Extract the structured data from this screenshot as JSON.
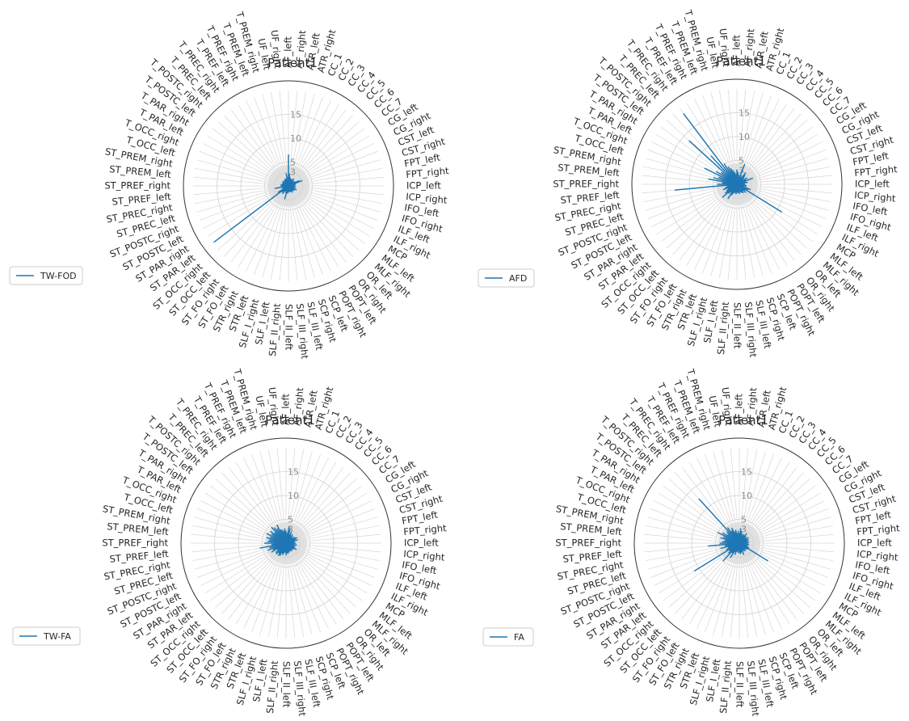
{
  "chart_data": [
    {
      "type": "radar",
      "title": "Patient1",
      "legend": "TW-FOD",
      "legend_position": "left",
      "color": "#1f77b4",
      "grid": true,
      "rlim": [
        0,
        20
      ],
      "rticks": [
        3,
        5,
        10,
        15
      ],
      "categories": [
        "AF_left",
        "AF_right",
        "ATR_left",
        "ATR_right",
        "CC_1",
        "CC_2",
        "CC_3",
        "CC_4",
        "CC_5",
        "CC_6",
        "CC_7",
        "CG_left",
        "CG_right",
        "CST_left",
        "CST_right",
        "FPT_left",
        "FPT_right",
        "ICP_left",
        "ICP_right",
        "IFO_left",
        "IFO_right",
        "ILF_left",
        "ILF_right",
        "MCP",
        "MLF_left",
        "MLF_right",
        "OR_left",
        "OR_right",
        "POPT_left",
        "POPT_right",
        "SCP_left",
        "SCP_right",
        "SLF_III_left",
        "SLF_III_right",
        "SLF_II_left",
        "SLF_II_right",
        "SLF_I_left",
        "SLF_I_right",
        "STR_left",
        "STR_right",
        "ST_FO_left",
        "ST_FO_right",
        "ST_OCC_left",
        "ST_OCC_right",
        "ST_PAR_left",
        "ST_PAR_right",
        "ST_POSTC_left",
        "ST_POSTC_right",
        "ST_PREC_left",
        "ST_PREC_right",
        "ST_PREF_left",
        "ST_PREF_right",
        "ST_PREM_left",
        "ST_PREM_right",
        "T_OCC_left",
        "T_OCC_right",
        "T_PAR_left",
        "T_PAR_right",
        "T_POSTC_left",
        "T_POSTC_right",
        "T_PREC_left",
        "T_PREC_right",
        "T_PREF_left",
        "T_PREF_right",
        "T_PREM_left",
        "T_PREM_right",
        "UF_left",
        "UF_right"
      ],
      "values": [
        6.5,
        2.5,
        1.8,
        1.5,
        1.2,
        1.5,
        1.0,
        1.8,
        1.2,
        1.4,
        1.0,
        1.6,
        2.4,
        3.0,
        1.5,
        1.2,
        1.4,
        1.0,
        1.2,
        1.5,
        1.0,
        1.2,
        1.8,
        1.5,
        1.0,
        1.4,
        1.2,
        1.0,
        1.5,
        1.2,
        1.0,
        1.3,
        1.1,
        1.0,
        1.2,
        1.5,
        1.0,
        2.8,
        1.5,
        1.0,
        1.2,
        2.0,
        1.6,
        1.8,
        19.5,
        2.5,
        1.4,
        1.2,
        1.0,
        2.8,
        1.5,
        1.2,
        1.6,
        1.0,
        1.4,
        1.2,
        1.0,
        1.3,
        1.5,
        1.2,
        1.0,
        1.4,
        1.2,
        1.6,
        1.3,
        1.5,
        2.6,
        1.8
      ]
    },
    {
      "type": "radar",
      "title": "Patient1",
      "legend": "AFD",
      "legend_position": "left",
      "color": "#1f77b4",
      "grid": true,
      "rlim": [
        0,
        20
      ],
      "rticks": [
        3,
        5,
        10,
        15
      ],
      "categories": [
        "AF_left",
        "AF_right",
        "ATR_left",
        "ATR_right",
        "CC_1",
        "CC_2",
        "CC_3",
        "CC_4",
        "CC_5",
        "CC_6",
        "CC_7",
        "CG_left",
        "CG_right",
        "CST_left",
        "CST_right",
        "FPT_left",
        "FPT_right",
        "ICP_left",
        "ICP_right",
        "IFO_left",
        "IFO_right",
        "ILF_left",
        "ILF_right",
        "MCP",
        "MLF_left",
        "MLF_right",
        "OR_left",
        "OR_right",
        "POPT_left",
        "POPT_right",
        "SCP_left",
        "SCP_right",
        "SLF_III_left",
        "SLF_III_right",
        "SLF_II_left",
        "SLF_II_right",
        "SLF_I_left",
        "SLF_I_right",
        "STR_left",
        "STR_right",
        "ST_FO_left",
        "ST_FO_right",
        "ST_OCC_left",
        "ST_OCC_right",
        "ST_PAR_left",
        "ST_PAR_right",
        "ST_POSTC_left",
        "ST_POSTC_right",
        "ST_PREC_left",
        "ST_PREC_right",
        "ST_PREF_left",
        "ST_PREF_right",
        "ST_PREM_left",
        "ST_PREM_right",
        "T_OCC_left",
        "T_OCC_right",
        "T_PAR_left",
        "T_PAR_right",
        "T_POSTC_left",
        "T_POSTC_right",
        "T_PREC_left",
        "T_PREC_right",
        "T_PREF_left",
        "T_PREF_right",
        "T_PREM_left",
        "T_PREM_right",
        "UF_left",
        "UF_right"
      ],
      "values": [
        3.0,
        2.5,
        2.0,
        1.5,
        4.5,
        2.0,
        1.5,
        3.0,
        2.5,
        2.0,
        1.5,
        2.5,
        2.0,
        3.5,
        1.8,
        2.2,
        1.6,
        1.4,
        1.8,
        2.0,
        1.5,
        3.0,
        2.5,
        11.0,
        2.0,
        2.5,
        1.8,
        2.2,
        2.0,
        1.8,
        1.5,
        2.0,
        1.6,
        1.8,
        1.5,
        2.0,
        1.8,
        1.6,
        2.0,
        2.5,
        3.5,
        2.0,
        2.5,
        4.0,
        3.0,
        2.5,
        2.0,
        3.0,
        2.5,
        2.0,
        13.0,
        4.0,
        3.0,
        6.0,
        5.0,
        4.0,
        7.5,
        5.0,
        4.0,
        13.5,
        8.0,
        18.5,
        5.0,
        4.0,
        3.5,
        3.0,
        2.5,
        2.0
      ]
    },
    {
      "type": "radar",
      "title": "Patient1",
      "legend": "TW-FA",
      "legend_position": "left",
      "color": "#1f77b4",
      "grid": true,
      "rlim": [
        0,
        20
      ],
      "rticks": [
        3,
        5,
        10,
        15
      ],
      "categories": [
        "AF_left",
        "AF_right",
        "ATR_left",
        "ATR_right",
        "CC_1",
        "CC_2",
        "CC_3",
        "CC_4",
        "CC_5",
        "CC_6",
        "CC_7",
        "CG_left",
        "CG_right",
        "CST_left",
        "CST_right",
        "FPT_left",
        "FPT_right",
        "ICP_left",
        "ICP_right",
        "IFO_left",
        "IFO_right",
        "ILF_left",
        "ILF_right",
        "MCP",
        "MLF_left",
        "MLF_right",
        "OR_left",
        "OR_right",
        "POPT_left",
        "POPT_right",
        "SCP_left",
        "SCP_right",
        "SLF_III_left",
        "SLF_III_right",
        "SLF_II_left",
        "SLF_II_right",
        "SLF_I_left",
        "SLF_I_right",
        "STR_left",
        "STR_right",
        "ST_FO_left",
        "ST_FO_right",
        "ST_OCC_left",
        "ST_OCC_right",
        "ST_PAR_left",
        "ST_PAR_right",
        "ST_POSTC_left",
        "ST_POSTC_right",
        "ST_PREC_left",
        "ST_PREC_right",
        "ST_PREF_left",
        "ST_PREF_right",
        "ST_PREM_left",
        "ST_PREM_right",
        "T_OCC_left",
        "T_OCC_right",
        "T_PAR_left",
        "T_PAR_right",
        "T_POSTC_left",
        "T_POSTC_right",
        "T_PREC_left",
        "T_PREC_right",
        "T_PREF_left",
        "T_PREF_right",
        "T_PREM_left",
        "T_PREM_right",
        "UF_left",
        "UF_right"
      ],
      "values": [
        2.5,
        2.0,
        3.5,
        3.0,
        2.0,
        2.5,
        1.8,
        2.2,
        1.5,
        2.0,
        1.6,
        2.2,
        2.5,
        2.0,
        2.5,
        1.8,
        1.5,
        2.0,
        1.6,
        2.2,
        1.5,
        2.0,
        1.8,
        2.5,
        2.0,
        1.8,
        1.5,
        2.0,
        1.8,
        1.6,
        2.0,
        1.8,
        2.2,
        2.0,
        2.5,
        1.8,
        2.0,
        2.5,
        2.2,
        2.8,
        3.0,
        2.5,
        3.0,
        2.8,
        2.2,
        3.5,
        3.0,
        4.0,
        3.5,
        5.5,
        3.0,
        4.5,
        3.8,
        3.5,
        4.2,
        3.5,
        4.5,
        3.5,
        4.0,
        3.2,
        4.5,
        4.0,
        3.5,
        4.2,
        3.0,
        2.8,
        2.5,
        3.0
      ]
    },
    {
      "type": "radar",
      "title": "Patient1",
      "legend": "FA",
      "legend_position": "left",
      "color": "#1f77b4",
      "grid": true,
      "rlim": [
        0,
        20
      ],
      "rticks": [
        3,
        5,
        10,
        15
      ],
      "categories": [
        "AF_left",
        "AF_right",
        "ATR_left",
        "ATR_right",
        "CC_1",
        "CC_2",
        "CC_3",
        "CC_4",
        "CC_5",
        "CC_6",
        "CC_7",
        "CG_left",
        "CG_right",
        "CST_left",
        "CST_right",
        "FPT_left",
        "FPT_right",
        "ICP_left",
        "ICP_right",
        "IFO_left",
        "IFO_right",
        "ILF_left",
        "ILF_right",
        "MCP",
        "MLF_left",
        "MLF_right",
        "OR_left",
        "OR_right",
        "POPT_left",
        "POPT_right",
        "SCP_left",
        "SCP_right",
        "SLF_III_left",
        "SLF_III_right",
        "SLF_II_left",
        "SLF_II_right",
        "SLF_I_left",
        "SLF_I_right",
        "STR_left",
        "STR_right",
        "ST_FO_left",
        "ST_FO_right",
        "ST_OCC_left",
        "ST_OCC_right",
        "ST_PAR_left",
        "ST_PAR_right",
        "ST_POSTC_left",
        "ST_POSTC_right",
        "ST_PREC_left",
        "ST_PREC_right",
        "ST_PREF_left",
        "ST_PREF_right",
        "ST_PREM_left",
        "ST_PREM_right",
        "T_OCC_left",
        "T_OCC_right",
        "T_PAR_left",
        "T_PAR_right",
        "T_POSTC_left",
        "T_POSTC_right",
        "T_PREC_left",
        "T_PREC_right",
        "T_PREF_left",
        "T_PREF_right",
        "T_PREM_left",
        "T_PREM_right",
        "UF_left",
        "UF_right"
      ],
      "values": [
        2.0,
        3.0,
        2.5,
        2.0,
        1.5,
        2.0,
        1.8,
        2.5,
        2.0,
        1.5,
        1.8,
        2.2,
        1.6,
        2.0,
        1.8,
        1.5,
        2.0,
        1.6,
        1.8,
        2.0,
        1.5,
        1.8,
        2.2,
        7.0,
        2.0,
        1.8,
        1.5,
        2.0,
        1.8,
        1.6,
        2.5,
        1.8,
        2.0,
        2.2,
        1.8,
        2.0,
        1.5,
        1.8,
        2.5,
        2.0,
        3.5,
        2.5,
        5.0,
        3.0,
        2.5,
        11.0,
        3.0,
        2.5,
        4.0,
        3.0,
        6.5,
        4.0,
        3.5,
        3.0,
        4.0,
        3.5,
        5.0,
        4.0,
        3.0,
        3.5,
        12.5,
        4.0,
        3.0,
        3.5,
        2.5,
        2.8,
        2.0,
        2.5
      ]
    }
  ]
}
